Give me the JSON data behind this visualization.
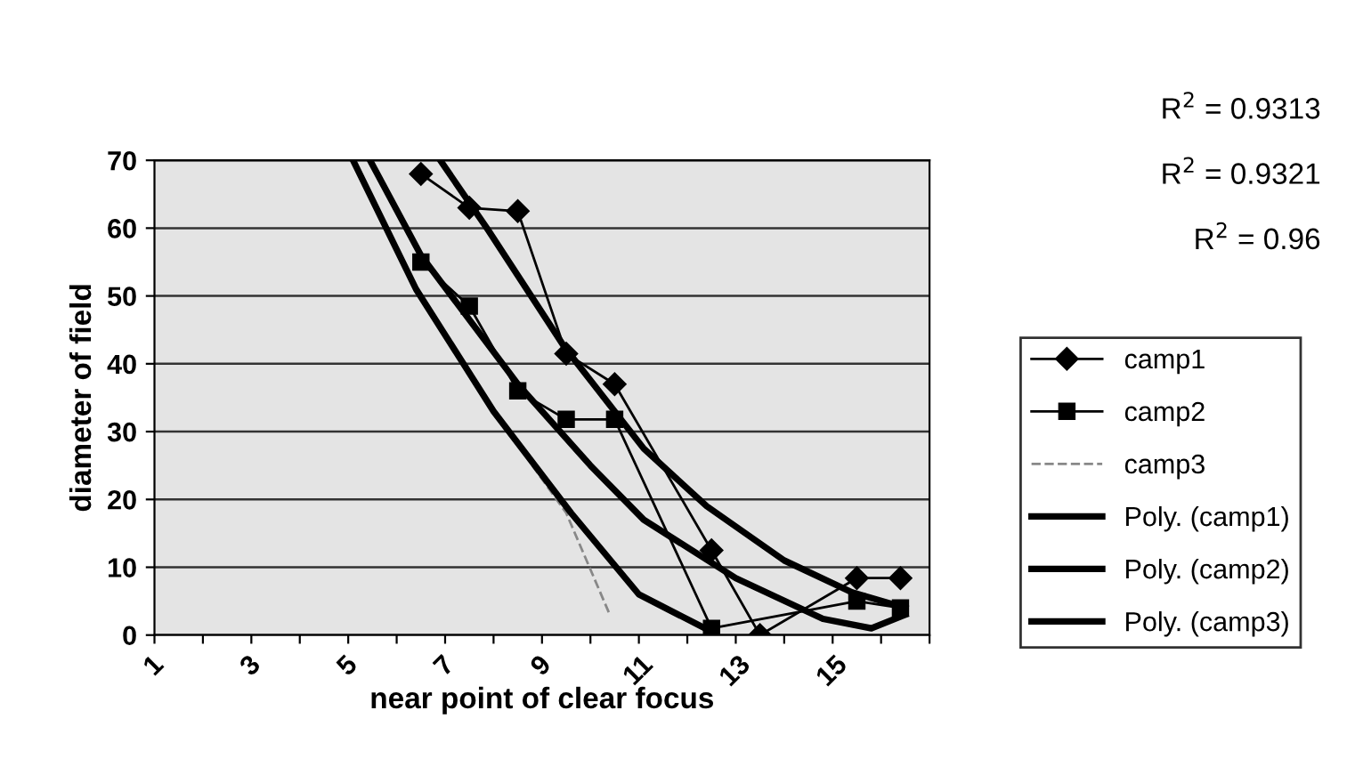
{
  "chart_data": {
    "type": "line",
    "xlabel": "near point of clear focus",
    "ylabel": "diameter of field",
    "xlim": [
      1,
      17
    ],
    "ylim": [
      0,
      70
    ],
    "xticks": [
      1,
      {
        "value": 2,
        "label": null
      },
      3,
      {
        "value": 4,
        "label": null
      },
      5,
      {
        "value": 6,
        "label": null
      },
      7,
      {
        "value": 8,
        "label": null
      },
      9,
      {
        "value": 10,
        "label": null
      },
      11,
      {
        "value": 12,
        "label": null
      },
      13,
      {
        "value": 14,
        "label": null
      },
      15,
      {
        "value": 16,
        "label": null
      },
      {
        "value": 17,
        "label": null
      }
    ],
    "yticks": [
      0,
      10,
      20,
      30,
      40,
      50,
      60,
      70
    ],
    "grid": "y",
    "legend": "right",
    "annotations": [
      "R$^{2}$ = 0.9313",
      "R$^{2}$ = 0.9321",
      "R$^{2}$ = 0.96"
    ],
    "series": [
      {
        "name": "camp1",
        "color": "#000000",
        "marker": "diamond",
        "line_style": "solid",
        "x": [
          6.5,
          7.5,
          8.5,
          9.5,
          10.5,
          12.5,
          13.5,
          15.5,
          16.4
        ],
        "values": [
          68,
          63,
          62.5,
          41.5,
          37,
          12.5,
          0,
          8.4,
          8.4
        ]
      },
      {
        "name": "camp2",
        "color": "#000000",
        "marker": "square",
        "line_style": "solid",
        "x": [
          6.5,
          7.5,
          8.5,
          9.5,
          10.5,
          12.5,
          15.5,
          16.4
        ],
        "values": [
          55,
          48.5,
          36,
          31.8,
          31.8,
          1,
          5,
          4
        ]
      },
      {
        "name": "camp3",
        "color": "#888888",
        "marker": "none",
        "line_style": "dashed",
        "x": [
          8.8,
          9.5,
          10.4
        ],
        "values": [
          25,
          18,
          3
        ]
      },
      {
        "name": "Poly. (camp1)",
        "color": "#000000",
        "marker": "none",
        "line_style": "solid",
        "x": [
          6.9,
          7.9,
          9.46,
          11.1,
          12.4,
          14,
          15.4,
          16.5
        ],
        "values": [
          70,
          59.6,
          42.5,
          27.5,
          19,
          11,
          6.3,
          4
        ]
      },
      {
        "name": "Poly. (camp2)",
        "color": "#000000",
        "marker": "none",
        "line_style": "solid",
        "x": [
          5.45,
          6.5,
          8.5,
          10,
          11.1,
          13,
          14.8,
          15.8,
          16.5
        ],
        "values": [
          70,
          56,
          37,
          25,
          17,
          8.4,
          2.4,
          1,
          3
        ]
      },
      {
        "name": "Poly. (camp3)",
        "color": "#000000",
        "marker": "none",
        "line_style": "solid",
        "x": [
          5.1,
          6.4,
          8,
          9.6,
          11,
          12.5
        ],
        "values": [
          70,
          51,
          33,
          18,
          6,
          0.5
        ]
      }
    ]
  }
}
